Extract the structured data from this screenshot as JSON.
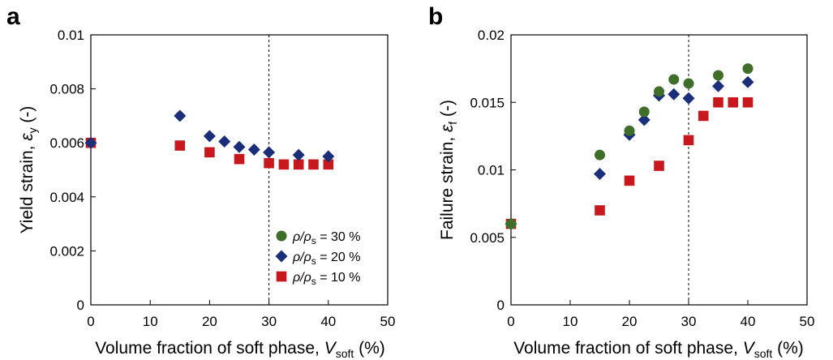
{
  "colors": {
    "s30": "#3F6D2A",
    "s20": "#1A2E7A",
    "s10": "#C8181E"
  },
  "chart_data": [
    {
      "type": "scatter",
      "panel": "a",
      "xlabel": {
        "main": "Volume  fraction of soft phase, ",
        "var": "V",
        "sub": "soft",
        "unit": " (%)"
      },
      "ylabel": {
        "main": "Yield strain, ",
        "var": "ε",
        "sub": "y",
        "unit": " (-)"
      },
      "xlim": [
        0,
        50
      ],
      "ylim": [
        0,
        0.01
      ],
      "xticks": [
        "0",
        "10",
        "20",
        "30",
        "40",
        "50"
      ],
      "yticks": [
        "0",
        "0.002",
        "0.004",
        "0.006",
        "0.008",
        "0.01"
      ],
      "vline": 30,
      "legend": {
        "position": "bottom-right"
      },
      "series": [
        {
          "name": "ρ/ρs = 30 %",
          "label": {
            "pre": "ρ/ρ",
            "sub": "s",
            "post": " = 30 %"
          },
          "marker": "circle",
          "color": "#3F6D2A",
          "x": [],
          "y": []
        },
        {
          "name": "ρ/ρs = 20 %",
          "label": {
            "pre": "ρ/ρ",
            "sub": "s",
            "post": " = 20 %"
          },
          "marker": "diamond",
          "color": "#1A2E7A",
          "x": [
            0,
            15,
            20,
            22.5,
            25,
            27.5,
            30,
            35,
            40
          ],
          "y": [
            0.006,
            0.007,
            0.00625,
            0.00605,
            0.00585,
            0.00575,
            0.00565,
            0.00555,
            0.0055
          ]
        },
        {
          "name": "ρ/ρs = 10 %",
          "label": {
            "pre": "ρ/ρ",
            "sub": "s",
            "post": " = 10 %"
          },
          "marker": "square",
          "color": "#C8181E",
          "x": [
            0,
            15,
            20,
            25,
            30,
            32.5,
            35,
            37.5,
            40
          ],
          "y": [
            0.006,
            0.0059,
            0.00565,
            0.0054,
            0.00525,
            0.0052,
            0.0052,
            0.0052,
            0.0052
          ]
        }
      ]
    },
    {
      "type": "scatter",
      "panel": "b",
      "xlabel": {
        "main": "Volume  fraction of soft phase, ",
        "var": "V",
        "sub": "soft",
        "unit": " (%)"
      },
      "ylabel": {
        "main": "Failure strain, ",
        "var": "ε",
        "sub": "f",
        "unit": " (-)"
      },
      "xlim": [
        0,
        50
      ],
      "ylim": [
        0,
        0.02
      ],
      "xticks": [
        "0",
        "10",
        "20",
        "30",
        "40",
        "50"
      ],
      "yticks": [
        "0",
        "0.005",
        "0.01",
        "0.015",
        "0.02"
      ],
      "vline": 30,
      "series": [
        {
          "name": "ρ/ρs = 30 %",
          "marker": "circle",
          "color": "#3F6D2A",
          "x": [
            0,
            15,
            20,
            22.5,
            25,
            27.5,
            30,
            35,
            40
          ],
          "y": [
            0.006,
            0.0111,
            0.0129,
            0.0143,
            0.0158,
            0.0167,
            0.0164,
            0.017,
            0.0175
          ]
        },
        {
          "name": "ρ/ρs = 20 %",
          "marker": "diamond",
          "color": "#1A2E7A",
          "x": [
            0,
            15,
            20,
            22.5,
            25,
            27.5,
            30,
            35,
            40
          ],
          "y": [
            0.006,
            0.0097,
            0.0126,
            0.0137,
            0.0155,
            0.0156,
            0.0153,
            0.0162,
            0.0165
          ]
        },
        {
          "name": "ρ/ρs = 10 %",
          "marker": "square",
          "color": "#C8181E",
          "x": [
            0,
            15,
            20,
            25,
            30,
            32.5,
            35,
            37.5,
            40
          ],
          "y": [
            0.006,
            0.007,
            0.0092,
            0.0103,
            0.0122,
            0.014,
            0.015,
            0.015,
            0.015
          ]
        }
      ]
    }
  ]
}
